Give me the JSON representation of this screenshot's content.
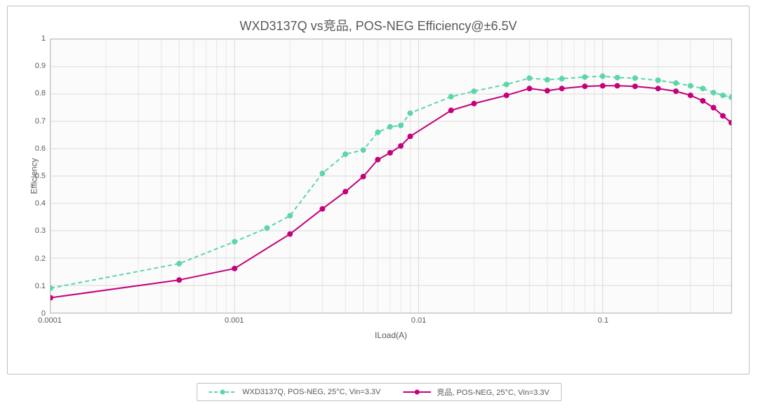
{
  "chart": {
    "type": "line",
    "title": "WXD3137Q vs竞品, POS-NEG Efficiency@±6.5V",
    "title_fontsize": 18,
    "title_color": "#595959",
    "background_color": "#ffffff",
    "plot_background_color": "#fbfbfb",
    "border_color": "#bfbfbf",
    "grid_color": "#d9d9d9",
    "text_color": "#595959",
    "label_fontsize": 12,
    "tick_fontsize": 11,
    "x": {
      "label": "ILoad(A)",
      "scale": "log",
      "min": 0.0001,
      "max": 0.5,
      "major_ticks": [
        0.0001,
        0.001,
        0.01,
        0.1
      ],
      "major_tick_labels": [
        "0.0001",
        "0.001",
        "0.01",
        "0.1"
      ],
      "minor_ticks": [
        0.0002,
        0.0003,
        0.0004,
        0.0005,
        0.0006,
        0.0007,
        0.0008,
        0.0009,
        0.002,
        0.003,
        0.004,
        0.005,
        0.006,
        0.007,
        0.008,
        0.009,
        0.02,
        0.03,
        0.04,
        0.05,
        0.06,
        0.07,
        0.08,
        0.09,
        0.2,
        0.3,
        0.4,
        0.5
      ]
    },
    "y": {
      "label": "Efficiency",
      "scale": "linear",
      "min": 0,
      "max": 1,
      "step": 0.1,
      "ticks": [
        0,
        0.1,
        0.2,
        0.3,
        0.4,
        0.5,
        0.6,
        0.7,
        0.8,
        0.9,
        1
      ],
      "tick_labels": [
        "0",
        "0.1",
        "0.2",
        "0.3",
        "0.4",
        "0.5",
        "0.6",
        "0.7",
        "0.8",
        "0.9",
        "1"
      ]
    },
    "series": [
      {
        "id": "wxd3137q",
        "label": "WXD3137Q, POS-NEG, 25°C, Vin=3.3V",
        "color": "#5cd6a9",
        "line_style": "dashed",
        "line_width": 2,
        "marker": "circle",
        "marker_size": 4,
        "marker_fill": "#5cd6a9",
        "points": [
          [
            0.0001,
            0.09
          ],
          [
            0.0005,
            0.18
          ],
          [
            0.001,
            0.26
          ],
          [
            0.0015,
            0.31
          ],
          [
            0.002,
            0.355
          ],
          [
            0.003,
            0.51
          ],
          [
            0.004,
            0.58
          ],
          [
            0.005,
            0.595
          ],
          [
            0.006,
            0.66
          ],
          [
            0.007,
            0.68
          ],
          [
            0.008,
            0.685
          ],
          [
            0.009,
            0.73
          ],
          [
            0.015,
            0.79
          ],
          [
            0.02,
            0.81
          ],
          [
            0.03,
            0.835
          ],
          [
            0.04,
            0.858
          ],
          [
            0.05,
            0.852
          ],
          [
            0.06,
            0.856
          ],
          [
            0.08,
            0.862
          ],
          [
            0.1,
            0.865
          ],
          [
            0.12,
            0.86
          ],
          [
            0.15,
            0.858
          ],
          [
            0.2,
            0.85
          ],
          [
            0.25,
            0.84
          ],
          [
            0.3,
            0.83
          ],
          [
            0.35,
            0.82
          ],
          [
            0.4,
            0.805
          ],
          [
            0.45,
            0.795
          ],
          [
            0.5,
            0.788
          ]
        ]
      },
      {
        "id": "competitor",
        "label": "竞品, POS-NEG, 25°C, Vin=3.3V",
        "color": "#c4007a",
        "line_style": "solid",
        "line_width": 2,
        "marker": "circle",
        "marker_size": 4,
        "marker_fill": "#c4007a",
        "points": [
          [
            0.0001,
            0.055
          ],
          [
            0.0005,
            0.12
          ],
          [
            0.001,
            0.162
          ],
          [
            0.002,
            0.288
          ],
          [
            0.003,
            0.38
          ],
          [
            0.004,
            0.443
          ],
          [
            0.005,
            0.498
          ],
          [
            0.006,
            0.56
          ],
          [
            0.007,
            0.585
          ],
          [
            0.008,
            0.61
          ],
          [
            0.009,
            0.645
          ],
          [
            0.015,
            0.74
          ],
          [
            0.02,
            0.765
          ],
          [
            0.03,
            0.795
          ],
          [
            0.04,
            0.82
          ],
          [
            0.05,
            0.812
          ],
          [
            0.06,
            0.82
          ],
          [
            0.08,
            0.828
          ],
          [
            0.1,
            0.83
          ],
          [
            0.12,
            0.83
          ],
          [
            0.15,
            0.828
          ],
          [
            0.2,
            0.82
          ],
          [
            0.25,
            0.81
          ],
          [
            0.3,
            0.795
          ],
          [
            0.35,
            0.775
          ],
          [
            0.4,
            0.75
          ],
          [
            0.45,
            0.72
          ],
          [
            0.5,
            0.695
          ]
        ]
      }
    ],
    "legend": {
      "position": "bottom-center",
      "border_color": "#bfbfbf",
      "fontsize": 11
    }
  }
}
